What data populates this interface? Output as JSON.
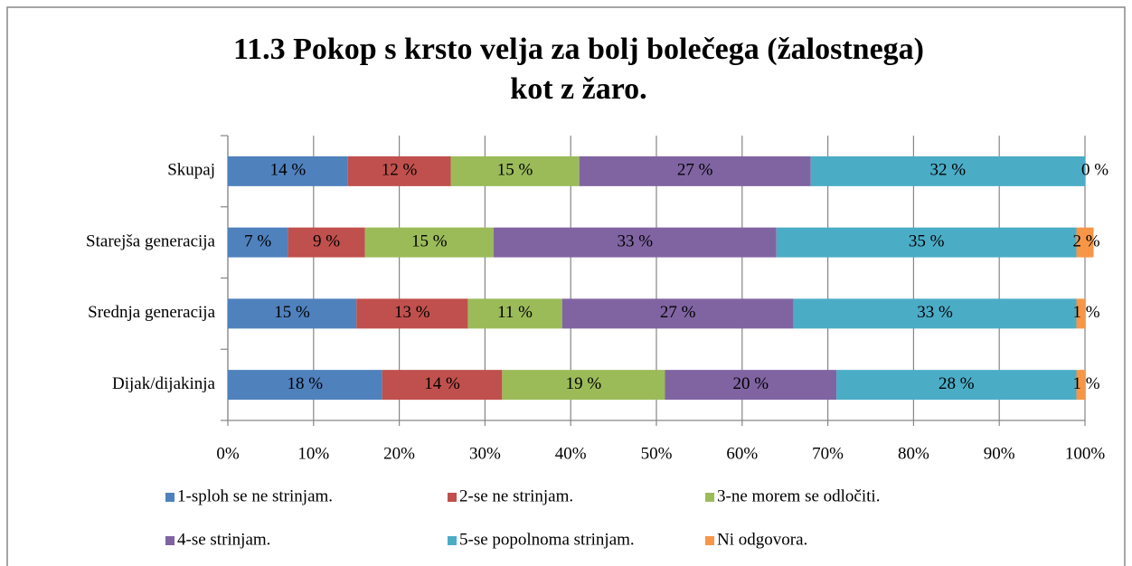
{
  "chart_data": {
    "type": "stacked-barh",
    "title": "11.3 Pokop s krsto velja za bolj bolečega (žalostnega)",
    "subtitle": "kot z žaro.",
    "categories": [
      "Skupaj",
      "Starejša generacija",
      "Srednja generacija",
      "Dijak/dijakinja"
    ],
    "series": [
      {
        "name": "1-sploh se ne strinjam.",
        "color": "#4f81bd",
        "values": [
          14,
          7,
          15,
          18
        ],
        "value_labels": [
          "14 %",
          "7 %",
          "15 %",
          "18 %"
        ]
      },
      {
        "name": "2-se ne strinjam.",
        "color": "#c0504d",
        "values": [
          12,
          9,
          13,
          14
        ],
        "value_labels": [
          "12 %",
          "9 %",
          "13 %",
          "14 %"
        ]
      },
      {
        "name": "3-ne morem se odločiti.",
        "color": "#9bbb59",
        "values": [
          15,
          15,
          11,
          19
        ],
        "value_labels": [
          "15 %",
          "15 %",
          "11 %",
          "19 %"
        ]
      },
      {
        "name": "4-se strinjam.",
        "color": "#8064a2",
        "values": [
          27,
          33,
          27,
          20
        ],
        "value_labels": [
          "27 %",
          "33 %",
          "27 %",
          "20 %"
        ]
      },
      {
        "name": "5-se popolnoma strinjam.",
        "color": "#4bacc6",
        "values": [
          32,
          35,
          33,
          28
        ],
        "value_labels": [
          "32 %",
          "35 %",
          "33 %",
          "28 %"
        ]
      },
      {
        "name": "Ni odgovora.",
        "color": "#f79646",
        "values": [
          0,
          2,
          1,
          1
        ],
        "value_labels": [
          "0 %",
          "2 %",
          "1 %",
          "1 %"
        ]
      }
    ],
    "xlim": [
      0,
      100
    ],
    "xticks": [
      {
        "value": 0,
        "label": "0%"
      },
      {
        "value": 10,
        "label": "10%"
      },
      {
        "value": 20,
        "label": "20%"
      },
      {
        "value": 30,
        "label": "30%"
      },
      {
        "value": 40,
        "label": "40%"
      },
      {
        "value": 50,
        "label": "50%"
      },
      {
        "value": 60,
        "label": "60%"
      },
      {
        "value": 70,
        "label": "70%"
      },
      {
        "value": 80,
        "label": "80%"
      },
      {
        "value": 90,
        "label": "90%"
      },
      {
        "value": 100,
        "label": "100%"
      }
    ],
    "grid": true,
    "legend": "bottom"
  }
}
